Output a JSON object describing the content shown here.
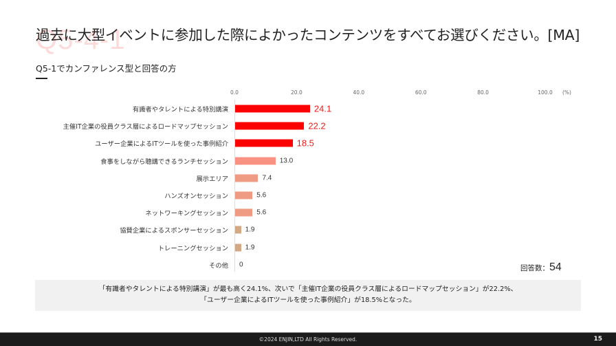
{
  "header": {
    "watermark": "Q5-4-1",
    "title": "過去に大型イベントに参加した際によかったコンテンツをすべてお選びください。[MA]",
    "subtitle": "Q5-1でカンファレンス型と回答の方"
  },
  "chart_data": {
    "type": "bar",
    "orientation": "horizontal",
    "title": "過去に大型イベントに参加した際によかったコンテンツをすべてお選びください。[MA]",
    "subtitle": "Q5-1でカンファレンス型と回答の方",
    "xlabel": "(%)",
    "ylabel": "",
    "xlim": [
      0,
      100
    ],
    "x_ticks": [
      "0.0",
      "20.0",
      "40.0",
      "60.0",
      "80.0",
      "100.0"
    ],
    "unit": "(%)",
    "grid": false,
    "legend": null,
    "categories": [
      "有識者やタレントによる特別講演",
      "主催IT企業の役員クラス層によるロードマップセッション",
      "ユーザー企業によるITツールを使った事例紹介",
      "食事をしながら聴講できるランチセッション",
      "展示エリア",
      "ハンズオンセッション",
      "ネットワーキングセッション",
      "協賛企業によるスポンサーセッション",
      "トレーニングセッション",
      "その他"
    ],
    "values": [
      24.1,
      22.2,
      18.5,
      13.0,
      7.4,
      5.6,
      5.6,
      1.9,
      1.9,
      0
    ],
    "value_labels": [
      "24.1",
      "22.2",
      "18.5",
      "13.0",
      "7.4",
      "5.6",
      "5.6",
      "1.9",
      "1.9",
      "0"
    ],
    "highlight_top": 3,
    "colors": [
      "#ff0000",
      "#ff0000",
      "#ff0000",
      "#f99282",
      "#ef9a82",
      "#ef9a82",
      "#ef9a82",
      "#d2a885",
      "#d2a885",
      "#d2a885"
    ],
    "respondents_label": "回答数：",
    "respondents": "54"
  },
  "respondents": {
    "label": "回答数：",
    "value": "54"
  },
  "summary": {
    "line1": "「有識者やタレントによる特別講演」が最も高く24.1%、次いで「主催IT企業の役員クラス層によるロードマップセッション」が22.2%、",
    "line2": "「ユーザー企業によるITツールを使った事例紹介」が18.5%となった。"
  },
  "footer": {
    "copyright": "©2024 ENJIN,LTD  All Rights Reserved.",
    "page": "15"
  }
}
